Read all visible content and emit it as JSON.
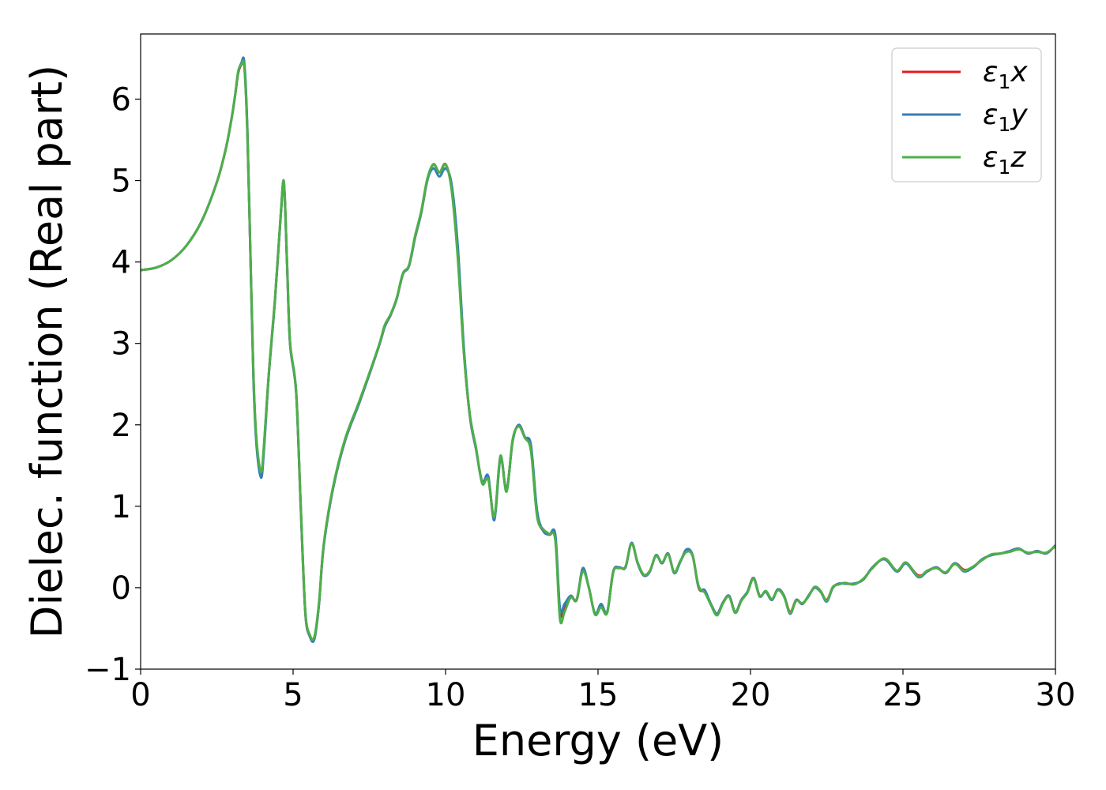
{
  "chart_data": {
    "type": "line",
    "xlabel": "Energy (eV)",
    "ylabel": "Dielec. function (Real part)",
    "xlim": [
      0,
      30
    ],
    "ylim": [
      -1,
      6.8
    ],
    "xticks": [
      0,
      5,
      10,
      15,
      20,
      25,
      30
    ],
    "yticks": [
      -1,
      0,
      1,
      2,
      3,
      4,
      5,
      6
    ],
    "xtick_labels": [
      "0",
      "5",
      "10",
      "15",
      "20",
      "25",
      "30"
    ],
    "ytick_labels": [
      "−1",
      "0",
      "1",
      "2",
      "3",
      "4",
      "5",
      "6"
    ],
    "grid": false,
    "legend_position": "top-right",
    "series": [
      {
        "name": "ε₁x",
        "color": "#e41a1c",
        "legend": {
          "base": "ε",
          "sub": "1",
          "var": "x"
        },
        "x": [
          0.0,
          0.5,
          1.0,
          1.5,
          2.0,
          2.5,
          2.8,
          3.0,
          3.1,
          3.2,
          3.3,
          3.4,
          3.5,
          3.6,
          3.7,
          3.8,
          3.95,
          4.05,
          4.2,
          4.4,
          4.6,
          4.7,
          4.8,
          4.9,
          5.1,
          5.25,
          5.4,
          5.55,
          5.7,
          5.85,
          6.0,
          6.3,
          6.7,
          7.2,
          7.8,
          8.0,
          8.2,
          8.4,
          8.6,
          8.8,
          9.0,
          9.2,
          9.4,
          9.6,
          9.8,
          10.0,
          10.2,
          10.4,
          10.6,
          10.8,
          11.0,
          11.2,
          11.4,
          11.6,
          11.8,
          12.0,
          12.2,
          12.4,
          12.6,
          12.8,
          13.0,
          13.2,
          13.4,
          13.6,
          13.75,
          13.9,
          14.1,
          14.3,
          14.5,
          14.7,
          14.9,
          15.1,
          15.3,
          15.5,
          15.7,
          15.9,
          16.1,
          16.3,
          16.5,
          16.7,
          16.9,
          17.1,
          17.3,
          17.5,
          17.7,
          17.9,
          18.1,
          18.3,
          18.5,
          18.7,
          18.9,
          19.1,
          19.3,
          19.5,
          19.7,
          19.9,
          20.1,
          20.3,
          20.5,
          20.7,
          20.9,
          21.1,
          21.3,
          21.5,
          21.7,
          21.9,
          22.1,
          22.3,
          22.5,
          22.7,
          22.9,
          23.1,
          23.4,
          23.7,
          24.0,
          24.4,
          24.8,
          25.1,
          25.5,
          25.8,
          26.1,
          26.4,
          26.7,
          27.0,
          27.3,
          27.6,
          27.9,
          28.2,
          28.5,
          28.8,
          29.1,
          29.4,
          29.7,
          30.0
        ],
        "y": [
          3.9,
          3.93,
          4.02,
          4.2,
          4.5,
          4.98,
          5.4,
          5.8,
          6.05,
          6.32,
          6.42,
          6.42,
          5.6,
          4.1,
          2.6,
          1.8,
          1.38,
          1.75,
          2.6,
          3.5,
          4.6,
          4.97,
          4.0,
          3.0,
          2.4,
          1.0,
          -0.3,
          -0.6,
          -0.62,
          -0.2,
          0.5,
          1.2,
          1.8,
          2.3,
          2.95,
          3.2,
          3.35,
          3.55,
          3.85,
          3.95,
          4.3,
          4.6,
          5.0,
          5.2,
          5.1,
          5.2,
          4.9,
          4.1,
          2.9,
          2.1,
          1.7,
          1.3,
          1.35,
          0.85,
          1.6,
          1.2,
          1.8,
          2.0,
          1.85,
          1.7,
          0.9,
          0.7,
          0.65,
          0.6,
          -0.3,
          -0.25,
          -0.1,
          -0.15,
          0.22,
          0.0,
          -0.32,
          -0.22,
          -0.3,
          0.2,
          0.25,
          0.25,
          0.55,
          0.3,
          0.15,
          0.2,
          0.4,
          0.3,
          0.42,
          0.18,
          0.32,
          0.45,
          0.4,
          0.0,
          -0.05,
          -0.2,
          -0.32,
          -0.18,
          -0.1,
          -0.3,
          -0.15,
          -0.05,
          0.12,
          -0.1,
          -0.05,
          -0.15,
          -0.02,
          -0.1,
          -0.3,
          -0.15,
          -0.2,
          -0.1,
          0.0,
          -0.05,
          -0.15,
          0.0,
          0.05,
          0.05,
          0.05,
          0.1,
          0.25,
          0.35,
          0.2,
          0.3,
          0.15,
          0.2,
          0.25,
          0.18,
          0.3,
          0.22,
          0.25,
          0.35,
          0.4,
          0.42,
          0.45,
          0.48,
          0.42,
          0.45,
          0.42,
          0.52
        ]
      },
      {
        "name": "ε₁y",
        "color": "#377eb8",
        "legend": {
          "base": "ε",
          "sub": "1",
          "var": "y"
        },
        "x": [
          0.0,
          0.5,
          1.0,
          1.5,
          2.0,
          2.5,
          2.8,
          3.0,
          3.1,
          3.2,
          3.3,
          3.4,
          3.5,
          3.6,
          3.7,
          3.8,
          3.95,
          4.05,
          4.2,
          4.4,
          4.6,
          4.7,
          4.8,
          4.9,
          5.1,
          5.25,
          5.4,
          5.55,
          5.7,
          5.85,
          6.0,
          6.3,
          6.7,
          7.2,
          7.8,
          8.0,
          8.2,
          8.4,
          8.6,
          8.8,
          9.0,
          9.2,
          9.4,
          9.6,
          9.8,
          10.0,
          10.2,
          10.4,
          10.6,
          10.8,
          11.0,
          11.2,
          11.4,
          11.6,
          11.8,
          12.0,
          12.2,
          12.4,
          12.6,
          12.8,
          13.0,
          13.2,
          13.4,
          13.6,
          13.75,
          13.9,
          14.1,
          14.3,
          14.5,
          14.7,
          14.9,
          15.1,
          15.3,
          15.5,
          15.7,
          15.9,
          16.1,
          16.3,
          16.5,
          16.7,
          16.9,
          17.1,
          17.3,
          17.5,
          17.7,
          17.9,
          18.1,
          18.3,
          18.5,
          18.7,
          18.9,
          19.1,
          19.3,
          19.5,
          19.7,
          19.9,
          20.1,
          20.3,
          20.5,
          20.7,
          20.9,
          21.1,
          21.3,
          21.5,
          21.7,
          21.9,
          22.1,
          22.3,
          22.5,
          22.7,
          22.9,
          23.1,
          23.4,
          23.7,
          24.0,
          24.4,
          24.8,
          25.1,
          25.5,
          25.8,
          26.1,
          26.4,
          26.7,
          27.0,
          27.3,
          27.6,
          27.9,
          28.2,
          28.5,
          28.8,
          29.1,
          29.4,
          29.7,
          30.0
        ],
        "y": [
          3.9,
          3.93,
          4.02,
          4.2,
          4.5,
          4.98,
          5.4,
          5.8,
          6.05,
          6.33,
          6.44,
          6.45,
          5.65,
          4.1,
          2.55,
          1.75,
          1.35,
          1.72,
          2.6,
          3.5,
          4.6,
          4.95,
          4.0,
          3.0,
          2.4,
          1.0,
          -0.3,
          -0.6,
          -0.63,
          -0.2,
          0.5,
          1.2,
          1.8,
          2.3,
          2.95,
          3.2,
          3.35,
          3.55,
          3.85,
          3.95,
          4.3,
          4.6,
          5.0,
          5.15,
          5.05,
          5.15,
          4.95,
          4.2,
          2.95,
          2.1,
          1.7,
          1.3,
          1.37,
          0.83,
          1.6,
          1.2,
          1.8,
          2.0,
          1.85,
          1.75,
          0.95,
          0.7,
          0.65,
          0.65,
          -0.25,
          -0.2,
          -0.1,
          -0.15,
          0.24,
          0.0,
          -0.32,
          -0.2,
          -0.3,
          0.2,
          0.25,
          0.25,
          0.55,
          0.3,
          0.15,
          0.2,
          0.4,
          0.3,
          0.42,
          0.18,
          0.32,
          0.47,
          0.4,
          0.0,
          -0.03,
          -0.2,
          -0.32,
          -0.18,
          -0.1,
          -0.3,
          -0.15,
          -0.05,
          0.12,
          -0.1,
          -0.05,
          -0.15,
          -0.02,
          -0.1,
          -0.32,
          -0.15,
          -0.2,
          -0.1,
          0.0,
          -0.05,
          -0.17,
          0.0,
          0.05,
          0.05,
          0.05,
          0.1,
          0.25,
          0.35,
          0.2,
          0.3,
          0.13,
          0.2,
          0.25,
          0.18,
          0.3,
          0.2,
          0.25,
          0.35,
          0.4,
          0.42,
          0.45,
          0.48,
          0.42,
          0.45,
          0.42,
          0.52
        ]
      },
      {
        "name": "ε₁z",
        "color": "#4daf4a",
        "legend": {
          "base": "ε",
          "sub": "1",
          "var": "z"
        },
        "x": [
          0.0,
          0.5,
          1.0,
          1.5,
          2.0,
          2.5,
          2.8,
          3.0,
          3.1,
          3.2,
          3.3,
          3.4,
          3.5,
          3.6,
          3.7,
          3.8,
          3.95,
          4.05,
          4.2,
          4.4,
          4.6,
          4.7,
          4.8,
          4.9,
          5.1,
          5.25,
          5.4,
          5.55,
          5.7,
          5.85,
          6.0,
          6.3,
          6.7,
          7.2,
          7.8,
          8.0,
          8.2,
          8.4,
          8.6,
          8.8,
          9.0,
          9.2,
          9.4,
          9.6,
          9.8,
          10.0,
          10.2,
          10.4,
          10.6,
          10.8,
          11.0,
          11.2,
          11.4,
          11.6,
          11.8,
          12.0,
          12.2,
          12.4,
          12.6,
          12.8,
          13.0,
          13.2,
          13.4,
          13.6,
          13.75,
          13.9,
          14.1,
          14.3,
          14.5,
          14.7,
          14.9,
          15.1,
          15.3,
          15.5,
          15.7,
          15.9,
          16.1,
          16.3,
          16.5,
          16.7,
          16.9,
          17.1,
          17.3,
          17.5,
          17.7,
          17.9,
          18.1,
          18.3,
          18.5,
          18.7,
          18.9,
          19.1,
          19.3,
          19.5,
          19.7,
          19.9,
          20.1,
          20.3,
          20.5,
          20.7,
          20.9,
          21.1,
          21.3,
          21.5,
          21.7,
          21.9,
          22.1,
          22.3,
          22.5,
          22.7,
          22.9,
          23.1,
          23.4,
          23.7,
          24.0,
          24.4,
          24.8,
          25.1,
          25.5,
          25.8,
          26.1,
          26.4,
          26.7,
          27.0,
          27.3,
          27.6,
          27.9,
          28.2,
          28.5,
          28.8,
          29.1,
          29.4,
          29.7,
          30.0
        ],
        "y": [
          3.9,
          3.93,
          4.02,
          4.2,
          4.5,
          4.98,
          5.4,
          5.8,
          6.05,
          6.34,
          6.42,
          6.4,
          5.58,
          4.12,
          2.62,
          1.82,
          1.42,
          1.78,
          2.62,
          3.52,
          4.62,
          4.98,
          4.02,
          3.02,
          2.42,
          1.02,
          -0.28,
          -0.58,
          -0.6,
          -0.18,
          0.52,
          1.22,
          1.82,
          2.32,
          2.96,
          3.22,
          3.36,
          3.56,
          3.86,
          3.96,
          4.32,
          4.62,
          5.02,
          5.2,
          5.1,
          5.2,
          4.88,
          4.05,
          2.88,
          2.12,
          1.72,
          1.28,
          1.33,
          0.87,
          1.62,
          1.18,
          1.82,
          1.98,
          1.84,
          1.68,
          0.88,
          0.72,
          0.66,
          0.58,
          -0.38,
          -0.3,
          -0.12,
          -0.14,
          0.2,
          0.0,
          -0.33,
          -0.24,
          -0.31,
          0.19,
          0.24,
          0.26,
          0.54,
          0.31,
          0.16,
          0.21,
          0.39,
          0.31,
          0.41,
          0.19,
          0.33,
          0.44,
          0.39,
          0.02,
          -0.06,
          -0.21,
          -0.34,
          -0.19,
          -0.11,
          -0.31,
          -0.16,
          -0.06,
          0.11,
          -0.11,
          -0.04,
          -0.14,
          -0.03,
          -0.11,
          -0.31,
          -0.16,
          -0.19,
          -0.11,
          0.01,
          -0.04,
          -0.16,
          0.01,
          0.04,
          0.06,
          0.04,
          0.11,
          0.24,
          0.36,
          0.21,
          0.31,
          0.14,
          0.21,
          0.24,
          0.19,
          0.29,
          0.21,
          0.26,
          0.34,
          0.41,
          0.42,
          0.44,
          0.47,
          0.43,
          0.44,
          0.43,
          0.51
        ]
      }
    ]
  }
}
